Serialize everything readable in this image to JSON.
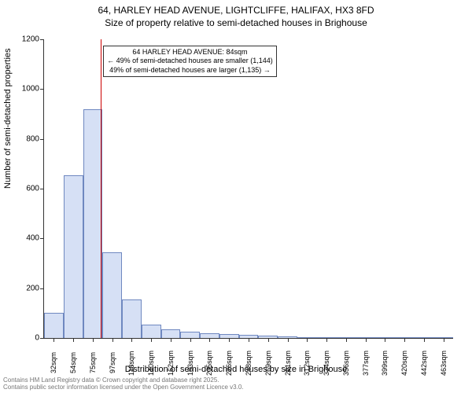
{
  "title": {
    "line1": "64, HARLEY HEAD AVENUE, LIGHTCLIFFE, HALIFAX, HX3 8FD",
    "line2": "Size of property relative to semi-detached houses in Brighouse",
    "fontsize": 12,
    "color": "#000000"
  },
  "chart": {
    "type": "histogram",
    "background_color": "#ffffff",
    "plot_border_color": "#333333",
    "ylabel": "Number of semi-detached properties",
    "xlabel": "Distribution of semi-detached houses by size in Brighouse",
    "label_fontsize": 11,
    "ylim": [
      0,
      1200
    ],
    "yticks": [
      0,
      200,
      400,
      600,
      800,
      1000,
      1200
    ],
    "tick_color": "#333333",
    "tick_fontsize": 10,
    "xticks_labels": [
      "32sqm",
      "54sqm",
      "75sqm",
      "97sqm",
      "118sqm",
      "140sqm",
      "162sqm",
      "183sqm",
      "205sqm",
      "226sqm",
      "248sqm",
      "269sqm",
      "291sqm",
      "312sqm",
      "334sqm",
      "356sqm",
      "377sqm",
      "399sqm",
      "420sqm",
      "442sqm",
      "463sqm"
    ],
    "bars": {
      "values": [
        100,
        655,
        920,
        345,
        155,
        55,
        35,
        25,
        20,
        15,
        12,
        8,
        5,
        3,
        2,
        2,
        1,
        1,
        0,
        0,
        1
      ],
      "fill_color": "#d6e0f5",
      "border_color": "#6f88c0",
      "border_width": 1
    },
    "marker": {
      "position_sqm": 84,
      "color": "#cc0000",
      "width": 1
    },
    "annotation": {
      "line1": "64 HARLEY HEAD AVENUE: 84sqm",
      "line2": "← 49% of semi-detached houses are smaller (1,144)",
      "line3": "49% of semi-detached houses are larger (1,135) →",
      "border_color": "#333333",
      "background": "#ffffff",
      "fontsize": 9
    }
  },
  "footer": {
    "line1": "Contains HM Land Registry data © Crown copyright and database right 2025.",
    "line2": "Contains public sector information licensed under the Open Government Licence v3.0.",
    "fontsize": 8,
    "color": "#777777"
  }
}
